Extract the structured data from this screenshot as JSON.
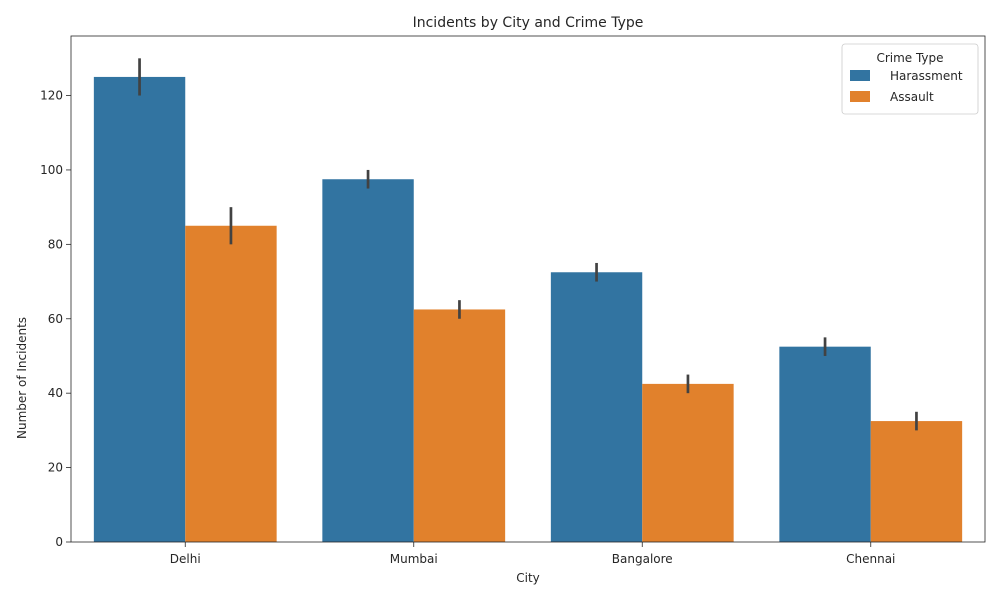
{
  "chart_data": {
    "type": "bar",
    "title": "Incidents by City and Crime Type",
    "xlabel": "City",
    "ylabel": "Number of Incidents",
    "categories": [
      "Delhi",
      "Mumbai",
      "Bangalore",
      "Chennai"
    ],
    "ylim": [
      0,
      136
    ],
    "yticks": [
      0,
      20,
      40,
      60,
      80,
      100,
      120
    ],
    "grid": false,
    "legend": {
      "title": "Crime Type",
      "placement": "top-right"
    },
    "series": [
      {
        "name": "Harassment",
        "color": "#3274a1",
        "values": [
          125,
          97.5,
          72.5,
          52.5
        ],
        "error_low": [
          120,
          95,
          70,
          50
        ],
        "error_high": [
          130,
          100,
          75,
          55
        ]
      },
      {
        "name": "Assault",
        "color": "#e1812c",
        "values": [
          85,
          62.5,
          42.5,
          32.5
        ],
        "error_low": [
          80,
          60,
          40,
          30
        ],
        "error_high": [
          90,
          65,
          45,
          35
        ]
      }
    ],
    "error_bar_color": "#424242"
  }
}
